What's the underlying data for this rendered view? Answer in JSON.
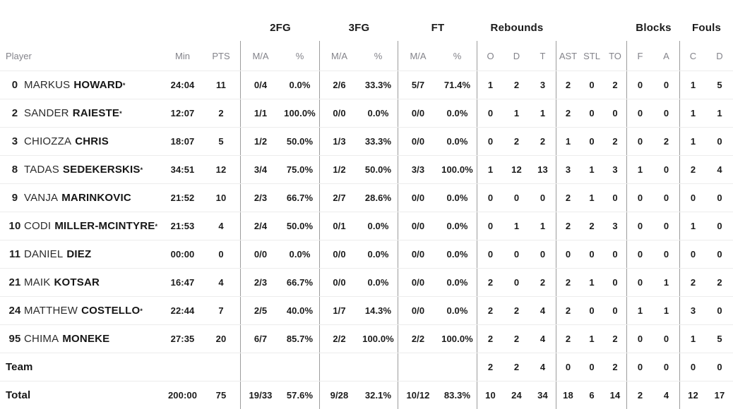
{
  "colors": {
    "background": "#ffffff",
    "header_text": "#83838a",
    "data_text": "#1b1b1b",
    "divider_vertical": "#9c9c9c",
    "divider_horizontal": "#ececec"
  },
  "table": {
    "starter_mark": "*",
    "group_headers": {
      "fg2": "2FG",
      "fg3": "3FG",
      "ft": "FT",
      "rebounds": "Rebounds",
      "blocks": "Blocks",
      "fouls": "Fouls"
    },
    "column_headers": {
      "player": "Player",
      "min": "Min",
      "pts": "PTS",
      "ma": "M/A",
      "pct": "%",
      "reb_o": "O",
      "reb_d": "D",
      "reb_t": "T",
      "ast": "AST",
      "stl": "STL",
      "to": "TO",
      "blk_f": "F",
      "blk_a": "A",
      "foul_c": "C",
      "foul_d": "D"
    },
    "players": [
      {
        "number": "0",
        "first": "MARKUS",
        "last": "HOWARD",
        "starter": true,
        "min": "24:04",
        "pts": "11",
        "fg2": "0/4",
        "fg2pct": "0.0%",
        "fg3": "2/6",
        "fg3pct": "33.3%",
        "ft": "5/7",
        "ftpct": "71.4%",
        "reb_o": "1",
        "reb_d": "2",
        "reb_t": "3",
        "ast": "2",
        "stl": "0",
        "to": "2",
        "blk_f": "0",
        "blk_a": "0",
        "foul_c": "1",
        "foul_d": "5"
      },
      {
        "number": "2",
        "first": "SANDER",
        "last": "RAIESTE",
        "starter": true,
        "min": "12:07",
        "pts": "2",
        "fg2": "1/1",
        "fg2pct": "100.0%",
        "fg3": "0/0",
        "fg3pct": "0.0%",
        "ft": "0/0",
        "ftpct": "0.0%",
        "reb_o": "0",
        "reb_d": "1",
        "reb_t": "1",
        "ast": "2",
        "stl": "0",
        "to": "0",
        "blk_f": "0",
        "blk_a": "0",
        "foul_c": "1",
        "foul_d": "1"
      },
      {
        "number": "3",
        "first": "CHIOZZA",
        "last": "CHRIS",
        "starter": false,
        "min": "18:07",
        "pts": "5",
        "fg2": "1/2",
        "fg2pct": "50.0%",
        "fg3": "1/3",
        "fg3pct": "33.3%",
        "ft": "0/0",
        "ftpct": "0.0%",
        "reb_o": "0",
        "reb_d": "2",
        "reb_t": "2",
        "ast": "1",
        "stl": "0",
        "to": "2",
        "blk_f": "0",
        "blk_a": "2",
        "foul_c": "1",
        "foul_d": "0"
      },
      {
        "number": "8",
        "first": "TADAS",
        "last": "SEDEKERSKIS",
        "starter": true,
        "min": "34:51",
        "pts": "12",
        "fg2": "3/4",
        "fg2pct": "75.0%",
        "fg3": "1/2",
        "fg3pct": "50.0%",
        "ft": "3/3",
        "ftpct": "100.0%",
        "reb_o": "1",
        "reb_d": "12",
        "reb_t": "13",
        "ast": "3",
        "stl": "1",
        "to": "3",
        "blk_f": "1",
        "blk_a": "0",
        "foul_c": "2",
        "foul_d": "4"
      },
      {
        "number": "9",
        "first": "VANJA",
        "last": "MARINKOVIC",
        "starter": false,
        "min": "21:52",
        "pts": "10",
        "fg2": "2/3",
        "fg2pct": "66.7%",
        "fg3": "2/7",
        "fg3pct": "28.6%",
        "ft": "0/0",
        "ftpct": "0.0%",
        "reb_o": "0",
        "reb_d": "0",
        "reb_t": "0",
        "ast": "2",
        "stl": "1",
        "to": "0",
        "blk_f": "0",
        "blk_a": "0",
        "foul_c": "0",
        "foul_d": "0"
      },
      {
        "number": "10",
        "first": "CODI",
        "last": "MILLER-MCINTYRE",
        "starter": true,
        "min": "21:53",
        "pts": "4",
        "fg2": "2/4",
        "fg2pct": "50.0%",
        "fg3": "0/1",
        "fg3pct": "0.0%",
        "ft": "0/0",
        "ftpct": "0.0%",
        "reb_o": "0",
        "reb_d": "1",
        "reb_t": "1",
        "ast": "2",
        "stl": "2",
        "to": "3",
        "blk_f": "0",
        "blk_a": "0",
        "foul_c": "1",
        "foul_d": "0"
      },
      {
        "number": "11",
        "first": "DANIEL",
        "last": "DIEZ",
        "starter": false,
        "min": "00:00",
        "pts": "0",
        "fg2": "0/0",
        "fg2pct": "0.0%",
        "fg3": "0/0",
        "fg3pct": "0.0%",
        "ft": "0/0",
        "ftpct": "0.0%",
        "reb_o": "0",
        "reb_d": "0",
        "reb_t": "0",
        "ast": "0",
        "stl": "0",
        "to": "0",
        "blk_f": "0",
        "blk_a": "0",
        "foul_c": "0",
        "foul_d": "0"
      },
      {
        "number": "21",
        "first": "MAIK",
        "last": "KOTSAR",
        "starter": false,
        "min": "16:47",
        "pts": "4",
        "fg2": "2/3",
        "fg2pct": "66.7%",
        "fg3": "0/0",
        "fg3pct": "0.0%",
        "ft": "0/0",
        "ftpct": "0.0%",
        "reb_o": "2",
        "reb_d": "0",
        "reb_t": "2",
        "ast": "2",
        "stl": "1",
        "to": "0",
        "blk_f": "0",
        "blk_a": "1",
        "foul_c": "2",
        "foul_d": "2"
      },
      {
        "number": "24",
        "first": "MATTHEW",
        "last": "COSTELLO",
        "starter": true,
        "min": "22:44",
        "pts": "7",
        "fg2": "2/5",
        "fg2pct": "40.0%",
        "fg3": "1/7",
        "fg3pct": "14.3%",
        "ft": "0/0",
        "ftpct": "0.0%",
        "reb_o": "2",
        "reb_d": "2",
        "reb_t": "4",
        "ast": "2",
        "stl": "0",
        "to": "0",
        "blk_f": "1",
        "blk_a": "1",
        "foul_c": "3",
        "foul_d": "0"
      },
      {
        "number": "95",
        "first": "CHIMA",
        "last": "MONEKE",
        "starter": false,
        "min": "27:35",
        "pts": "20",
        "fg2": "6/7",
        "fg2pct": "85.7%",
        "fg3": "2/2",
        "fg3pct": "100.0%",
        "ft": "2/2",
        "ftpct": "100.0%",
        "reb_o": "2",
        "reb_d": "2",
        "reb_t": "4",
        "ast": "2",
        "stl": "1",
        "to": "2",
        "blk_f": "0",
        "blk_a": "0",
        "foul_c": "1",
        "foul_d": "5"
      }
    ],
    "team_row": {
      "label": "Team",
      "min": "",
      "pts": "",
      "fg2": "",
      "fg2pct": "",
      "fg3": "",
      "fg3pct": "",
      "ft": "",
      "ftpct": "",
      "reb_o": "2",
      "reb_d": "2",
      "reb_t": "4",
      "ast": "0",
      "stl": "0",
      "to": "2",
      "blk_f": "0",
      "blk_a": "0",
      "foul_c": "0",
      "foul_d": "0"
    },
    "total_row": {
      "label": "Total",
      "min": "200:00",
      "pts": "75",
      "fg2": "19/33",
      "fg2pct": "57.6%",
      "fg3": "9/28",
      "fg3pct": "32.1%",
      "ft": "10/12",
      "ftpct": "83.3%",
      "reb_o": "10",
      "reb_d": "24",
      "reb_t": "34",
      "ast": "18",
      "stl": "6",
      "to": "14",
      "blk_f": "2",
      "blk_a": "4",
      "foul_c": "12",
      "foul_d": "17"
    }
  }
}
